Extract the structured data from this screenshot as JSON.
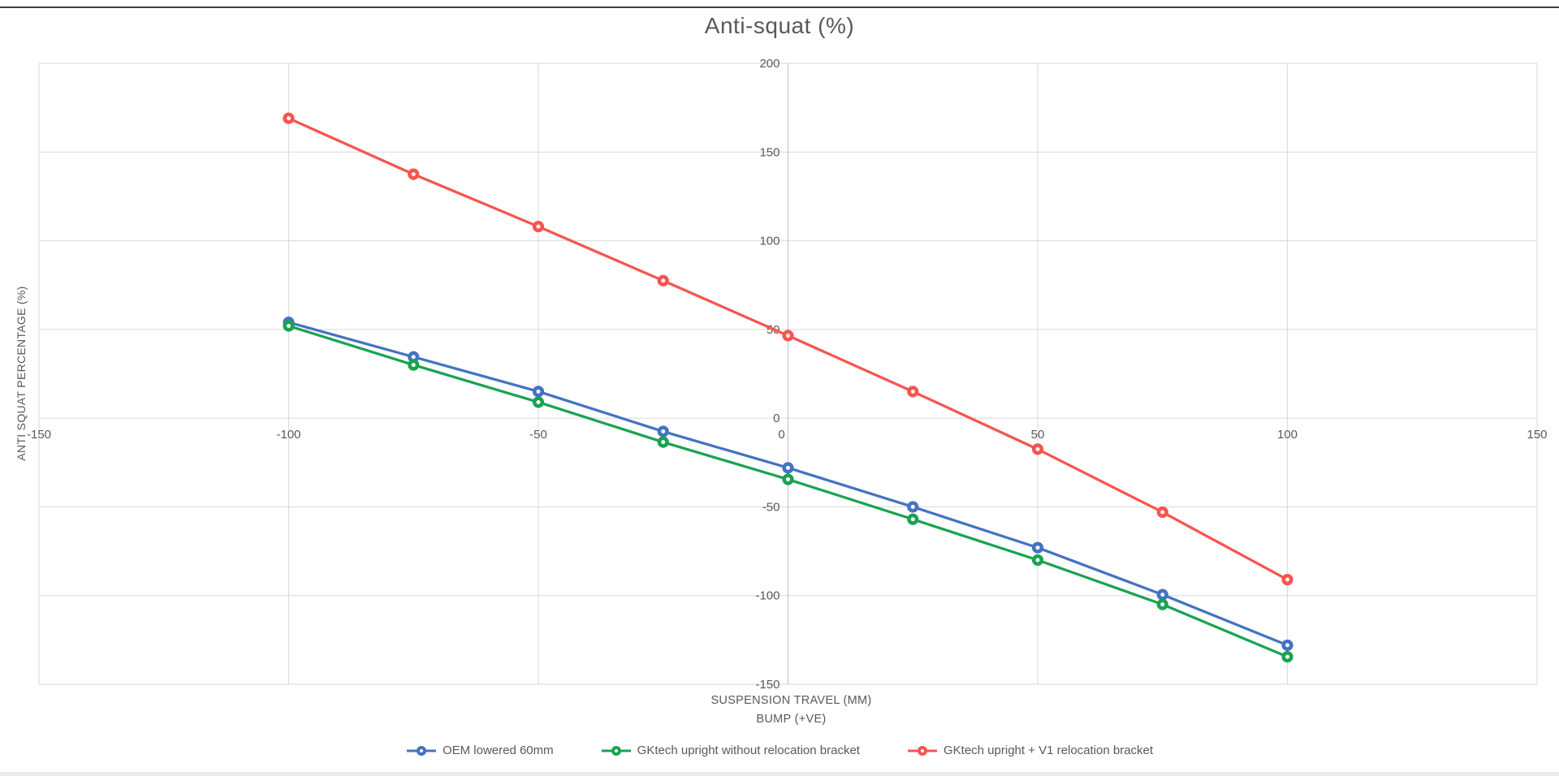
{
  "title": "Anti-squat (%)",
  "chart_data": {
    "type": "line",
    "title": "Anti-squat (%)",
    "x": [
      -100,
      -75,
      -50,
      -25,
      0,
      25,
      50,
      75,
      100
    ],
    "series": [
      {
        "name": "OEM lowered 60mm",
        "color": "#4472C4",
        "marker": "donut-circle",
        "values": [
          54,
          34.5,
          15,
          -7.5,
          -28,
          -50,
          -73,
          -99.5,
          -128
        ]
      },
      {
        "name": "GKtech upright without relocation bracket",
        "color": "#1AA352",
        "marker": "donut-circle",
        "values": [
          52,
          30,
          9,
          -13.5,
          -34.5,
          -57,
          -80,
          -105,
          -134.5
        ]
      },
      {
        "name": "GKtech upright + V1 relocation bracket",
        "color": "#F85450",
        "marker": "donut-circle",
        "values": [
          169,
          137.5,
          108,
          77.5,
          46.5,
          15,
          -17.5,
          -53,
          -91
        ]
      }
    ],
    "xlabel_line1": "SUSPENSION TRAVEL (MM)",
    "xlabel_line2": "BUMP (+VE)",
    "ylabel": "ANTI SQUAT PERCENTAGE (%)",
    "xlim": [
      -150,
      150
    ],
    "ylim": [
      -150,
      200
    ],
    "x_ticks": [
      -150,
      -100,
      -50,
      0,
      50,
      100,
      150
    ],
    "y_ticks": [
      200,
      150,
      100,
      50,
      0,
      -50,
      -100,
      -150
    ],
    "grid": true,
    "legend_position": "bottom"
  },
  "styles": {
    "text_color": "#595959",
    "gridline_color": "#D9D9D9",
    "axis_line_color": "#BFBFBF",
    "background": "#FFFFFF"
  }
}
